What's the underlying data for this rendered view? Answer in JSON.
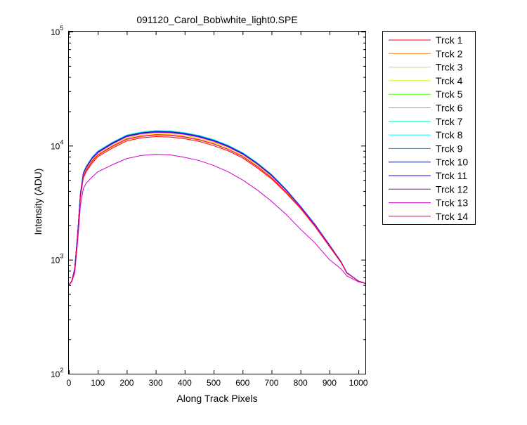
{
  "chart_data": {
    "type": "line",
    "title": "091120_Carol_Bob\\white_light0.SPE",
    "xlabel": "Along Track Pixels",
    "ylabel": "Intensity (ADU)",
    "xlim": [
      0,
      1024
    ],
    "ylim": [
      100,
      100000
    ],
    "yscale": "log",
    "grid": false,
    "legend_position": "outside-right",
    "x_ticks": [
      0,
      100,
      200,
      300,
      400,
      500,
      600,
      700,
      800,
      900,
      1000
    ],
    "x_tick_labels": [
      "0",
      "100",
      "200",
      "300",
      "400",
      "500",
      "600",
      "700",
      "800",
      "900",
      "1000"
    ],
    "y_ticks": [
      {
        "value": 100,
        "base": "10",
        "exp": "2"
      },
      {
        "value": 1000,
        "base": "10",
        "exp": "3"
      },
      {
        "value": 10000,
        "base": "10",
        "exp": "4"
      },
      {
        "value": 100000,
        "base": "10",
        "exp": "5"
      }
    ],
    "x": [
      0,
      10,
      20,
      30,
      40,
      50,
      60,
      80,
      100,
      150,
      200,
      250,
      300,
      350,
      400,
      450,
      500,
      550,
      600,
      650,
      700,
      750,
      800,
      850,
      900,
      940,
      960,
      1000,
      1024
    ],
    "series": [
      {
        "name": "Trck 1",
        "color": "#ff0000",
        "values": [
          600,
          650,
          800,
          1500,
          3500,
          5200,
          5900,
          7000,
          8000,
          9500,
          11000,
          11700,
          12000,
          11900,
          11500,
          10900,
          10000,
          9000,
          7800,
          6400,
          5100,
          3850,
          2800,
          1950,
          1300,
          940,
          760,
          650,
          620
        ]
      },
      {
        "name": "Trck 2",
        "color": "#ff7700",
        "values": [
          600,
          650,
          810,
          1550,
          3600,
          5300,
          6050,
          7200,
          8200,
          9750,
          11300,
          12000,
          12350,
          12250,
          11800,
          11200,
          10300,
          9250,
          8000,
          6550,
          5200,
          3900,
          2820,
          1970,
          1310,
          945,
          762,
          650,
          620
        ]
      },
      {
        "name": "Trck 3",
        "color": "#ffd200",
        "values": [
          600,
          650,
          820,
          1600,
          3700,
          5500,
          6250,
          7450,
          8500,
          10100,
          11700,
          12450,
          12800,
          12700,
          12250,
          11600,
          10650,
          9550,
          8250,
          6750,
          5350,
          4000,
          2870,
          2000,
          1330,
          950,
          765,
          650,
          620
        ]
      },
      {
        "name": "Trck 4",
        "color": "#c8ff00",
        "values": [
          600,
          650,
          825,
          1620,
          3750,
          5600,
          6400,
          7650,
          8700,
          10350,
          12000,
          12750,
          13100,
          13000,
          12550,
          11900,
          10900,
          9750,
          8450,
          6900,
          5450,
          4070,
          2900,
          2020,
          1340,
          955,
          768,
          650,
          620
        ]
      },
      {
        "name": "Trck 5",
        "color": "#55ff00",
        "values": [
          600,
          650,
          830,
          1640,
          3800,
          5700,
          6500,
          7800,
          8850,
          10550,
          12200,
          12950,
          13350,
          13250,
          12800,
          12100,
          11100,
          9900,
          8550,
          7000,
          5520,
          4110,
          2930,
          2030,
          1345,
          958,
          770,
          650,
          620
        ]
      },
      {
        "name": "Trck 6",
        "color": "#00ff44",
        "values": [
          600,
          650,
          830,
          1650,
          3820,
          5750,
          6550,
          7850,
          8900,
          10650,
          12300,
          13050,
          13450,
          13350,
          12900,
          12200,
          11200,
          10000,
          8620,
          7050,
          5560,
          4130,
          2940,
          2040,
          1350,
          960,
          770,
          650,
          620
        ]
      },
      {
        "name": "Trck 7",
        "color": "#00ffaa",
        "values": [
          600,
          650,
          835,
          1660,
          3840,
          5800,
          6600,
          7900,
          8950,
          10700,
          12400,
          13150,
          13550,
          13450,
          13000,
          12300,
          11300,
          10080,
          8680,
          7100,
          5600,
          4150,
          2950,
          2045,
          1352,
          962,
          772,
          650,
          620
        ]
      },
      {
        "name": "Trck 8",
        "color": "#00ffff",
        "values": [
          600,
          650,
          835,
          1660,
          3840,
          5800,
          6580,
          7880,
          8920,
          10680,
          12350,
          13100,
          13500,
          13400,
          12950,
          12250,
          11250,
          10050,
          8660,
          7080,
          5590,
          4140,
          2945,
          2042,
          1350,
          961,
          771,
          650,
          620
        ]
      },
      {
        "name": "Trck 9",
        "color": "#0088ff",
        "values": [
          600,
          650,
          832,
          1655,
          3830,
          5780,
          6560,
          7850,
          8900,
          10650,
          12300,
          13050,
          13450,
          13350,
          12900,
          12200,
          11200,
          10000,
          8620,
          7050,
          5570,
          4130,
          2940,
          2040,
          1348,
          960,
          770,
          650,
          620
        ]
      },
      {
        "name": "Trck 10",
        "color": "#001a80",
        "values": [
          600,
          650,
          828,
          1640,
          3800,
          5720,
          6480,
          7750,
          8780,
          10500,
          12150,
          12900,
          13300,
          13200,
          12750,
          12050,
          11080,
          9900,
          8540,
          6990,
          5520,
          4100,
          2920,
          2030,
          1344,
          958,
          768,
          650,
          620
        ]
      },
      {
        "name": "Trck 11",
        "color": "#2200ff",
        "values": [
          600,
          650,
          825,
          1630,
          3780,
          5680,
          6440,
          7700,
          8720,
          10420,
          12050,
          12800,
          13200,
          13100,
          12650,
          11950,
          10990,
          9820,
          8480,
          6940,
          5480,
          4080,
          2910,
          2025,
          1342,
          957,
          767,
          650,
          620
        ]
      },
      {
        "name": "Trck 12",
        "color": "#9900dd",
        "values": [
          600,
          650,
          822,
          1620,
          3760,
          5650,
          6400,
          7650,
          8660,
          10350,
          11980,
          12720,
          13100,
          13000,
          12560,
          11870,
          10920,
          9760,
          8430,
          6900,
          5450,
          4060,
          2900,
          2020,
          1340,
          956,
          766,
          650,
          620
        ]
      },
      {
        "name": "Trck 13",
        "color": "#cc00cc",
        "values": [
          600,
          640,
          760,
          1400,
          3000,
          4200,
          4700,
          5300,
          5900,
          6800,
          7700,
          8200,
          8400,
          8300,
          7900,
          7400,
          6700,
          5900,
          5000,
          4100,
          3250,
          2500,
          1850,
          1400,
          1000,
          830,
          720,
          640,
          620
        ]
      },
      {
        "name": "Trck 14",
        "color": "#ee0066",
        "values": [
          600,
          650,
          810,
          1560,
          3620,
          5350,
          6100,
          7300,
          8300,
          9900,
          11450,
          12150,
          12500,
          12400,
          11950,
          11300,
          10400,
          9300,
          8050,
          6600,
          5230,
          3920,
          2840,
          1980,
          1315,
          948,
          763,
          650,
          620
        ]
      }
    ]
  }
}
